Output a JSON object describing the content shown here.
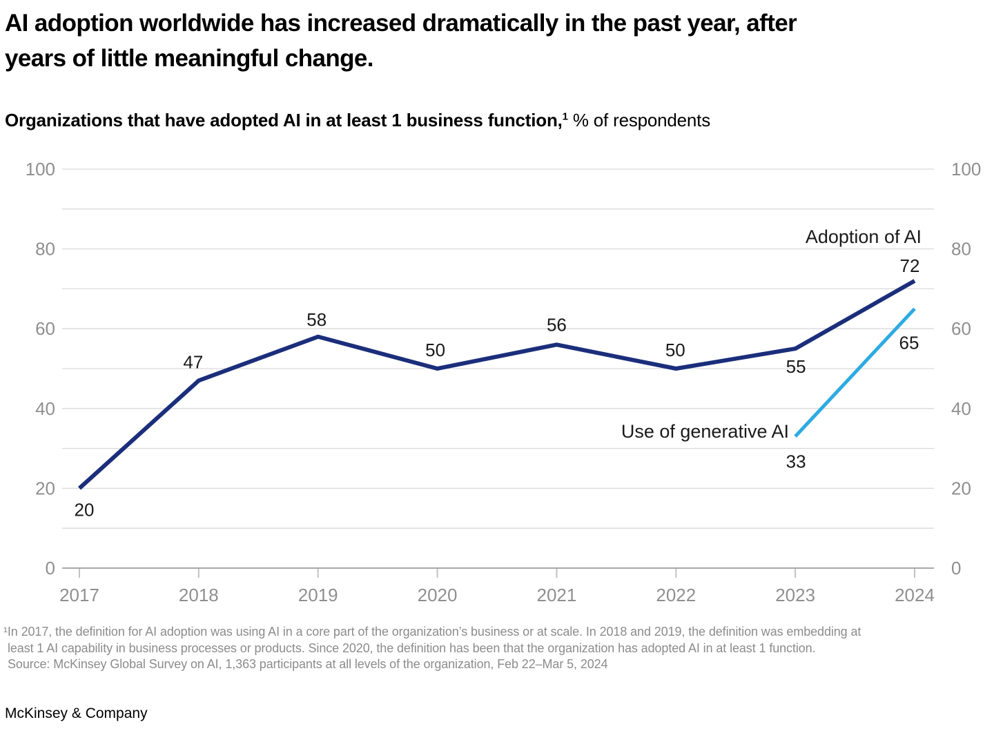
{
  "header": {
    "title_line1": "AI adoption worldwide has increased dramatically in the past year, after",
    "title_line2": "years of little meaningful change.",
    "subtitle_bold": "Organizations that have adopted AI in at least 1 business function,",
    "subtitle_superscript": "1",
    "subtitle_rest": "% of respondents"
  },
  "chart_data": {
    "type": "line",
    "x": [
      2017,
      2018,
      2019,
      2020,
      2021,
      2022,
      2023,
      2024
    ],
    "series": [
      {
        "name": "Adoption of AI",
        "color": "#1B2E7B",
        "values": [
          20,
          47,
          58,
          50,
          56,
          50,
          55,
          72
        ]
      },
      {
        "name": "Use of generative AI",
        "color": "#2DAAE2",
        "values": [
          null,
          null,
          null,
          null,
          null,
          null,
          33,
          65
        ]
      }
    ],
    "ylim": [
      0,
      100
    ],
    "y_ticks_labeled": [
      0,
      20,
      40,
      60,
      80,
      100
    ],
    "gridline_step": 10,
    "grid": true,
    "y_axis_sides": "both",
    "legend_position": "inline-end-labels",
    "colors": {
      "gridline": "#d9d9d9",
      "axis": "#a9a9a9",
      "tick": "#c2c2c2",
      "axis_label": "#8f8f8f",
      "data_label": "#1a1a1a"
    }
  },
  "footnote": {
    "line1": "¹In 2017, the definition for AI adoption was using AI in a core part of the organization’s business or at scale. In 2018 and 2019, the definition was embedding at",
    "line2": "least 1 AI capability in business processes or products. Since 2020, the definition has been that the organization has adopted AI in at least 1 function.",
    "line3": "Source: McKinsey Global Survey on AI, 1,363 participants at all levels of the organization, Feb 22–Mar 5, 2024"
  },
  "footer": {
    "brand": "McKinsey & Company"
  }
}
